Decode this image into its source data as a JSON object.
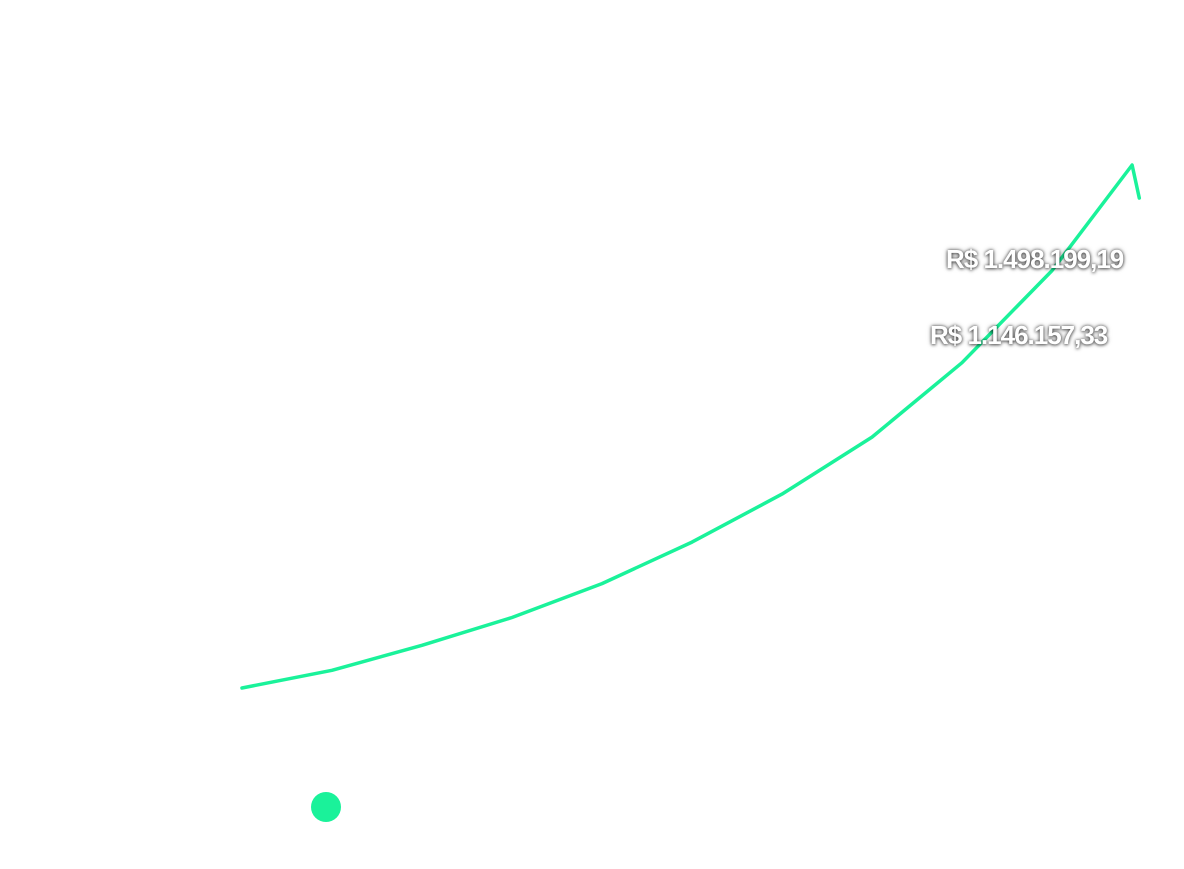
{
  "chart_data": {
    "type": "line",
    "series": [
      {
        "color": "#1af29a",
        "points": [
          [
            0,
            0
          ],
          [
            10,
            15.7
          ],
          [
            20,
            38.0
          ],
          [
            30,
            62.7
          ],
          [
            40,
            92.8
          ],
          [
            50,
            129.7
          ],
          [
            60,
            172.4
          ],
          [
            70,
            223.1
          ],
          [
            80,
            289.2
          ],
          [
            90,
            371.1
          ],
          [
            98.9,
            465.0
          ],
          [
            99.7,
            435.6
          ]
        ]
      }
    ],
    "annotations": [
      {
        "text": "R$ 1.498.199,19"
      },
      {
        "text": "R$ 1.146.157,33"
      }
    ],
    "grid": false,
    "legend": {
      "placement": "bottom-left",
      "marker_color": "#1af29a"
    }
  }
}
